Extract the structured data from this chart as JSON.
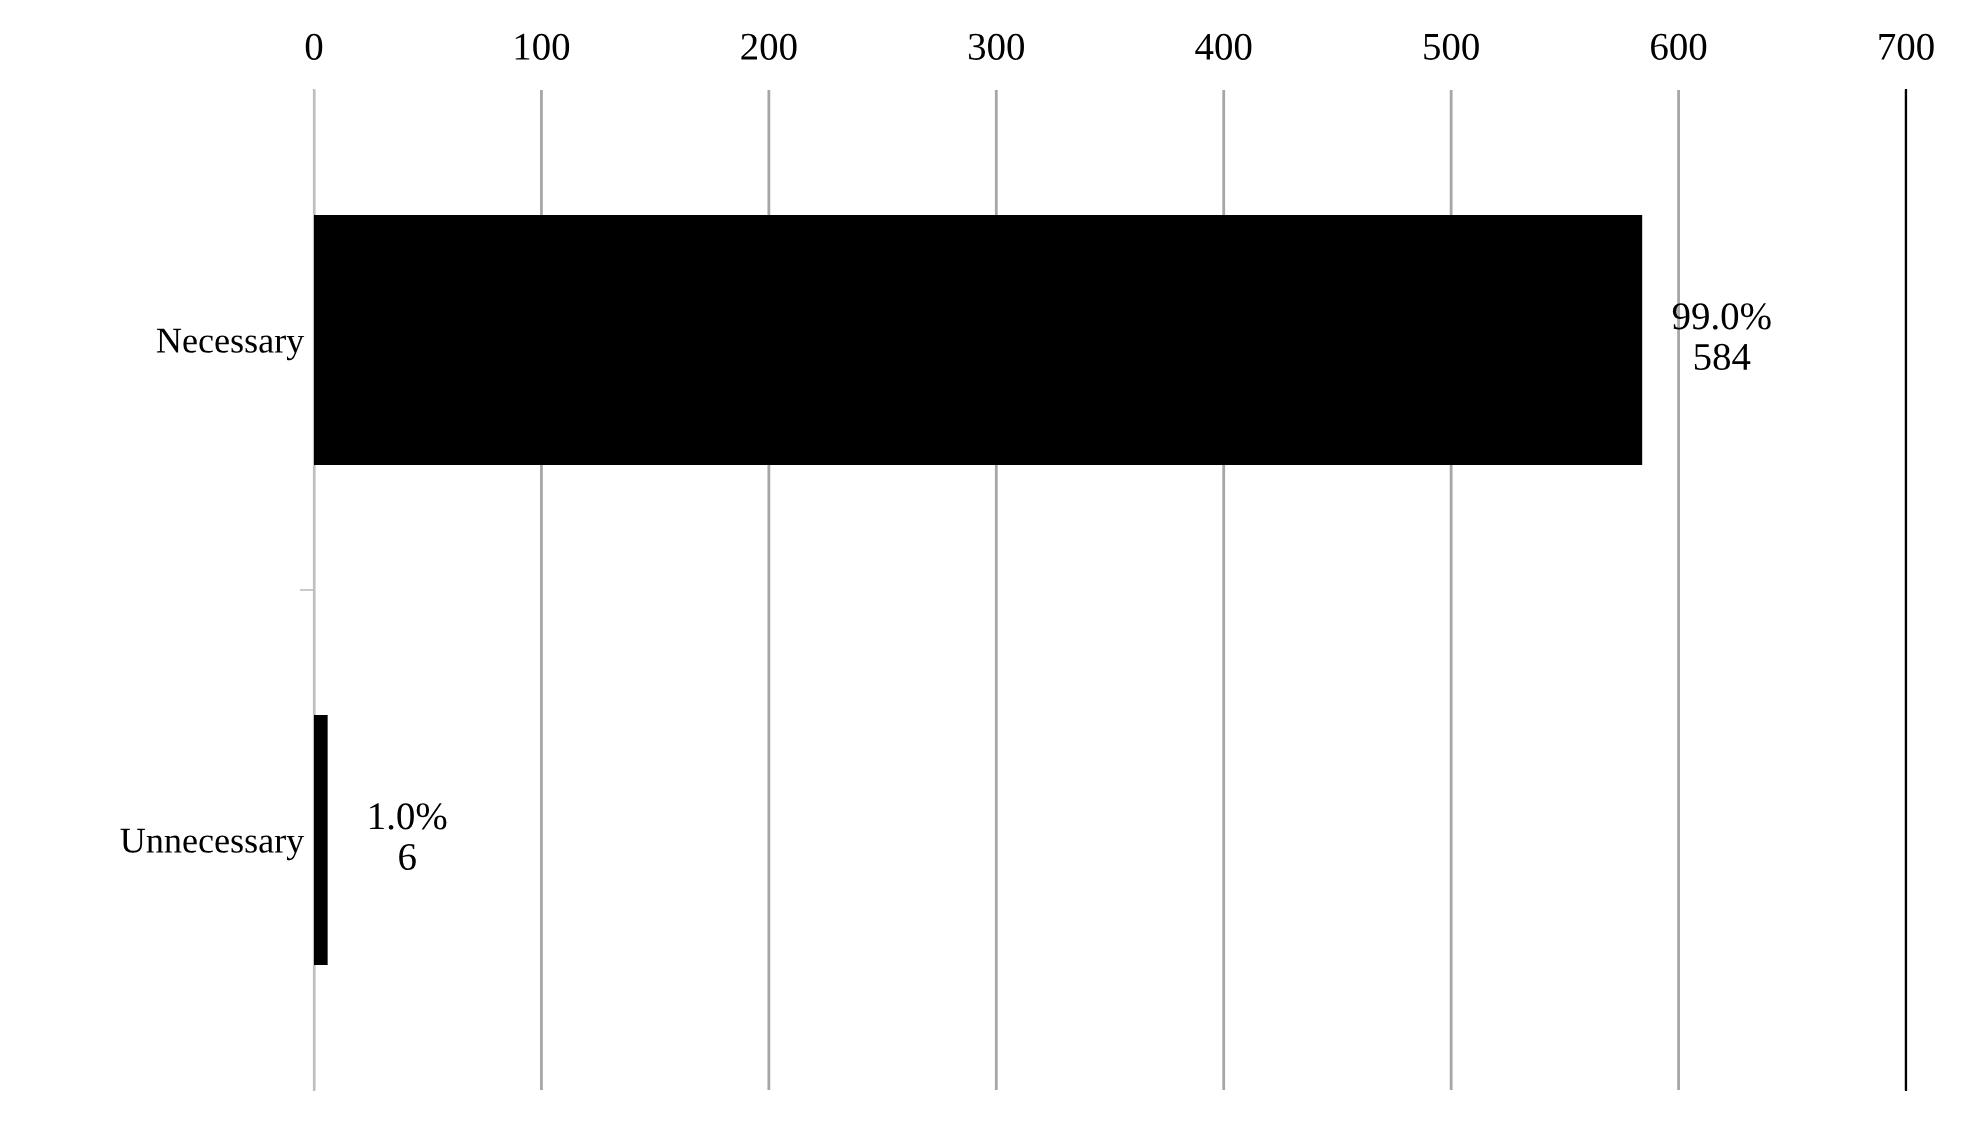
{
  "chart_data": {
    "type": "bar",
    "orientation": "horizontal",
    "categories": [
      "Necessary",
      "Unnecessary"
    ],
    "values": [
      584,
      6
    ],
    "color": "#000000",
    "value_labels": [
      "99.0%\n584",
      "1.0%\n6"
    ],
    "xlim": [
      0,
      700
    ],
    "xticks": [
      0,
      100,
      200,
      300,
      400,
      500,
      600,
      700
    ],
    "grid": "x",
    "legend": false
  }
}
